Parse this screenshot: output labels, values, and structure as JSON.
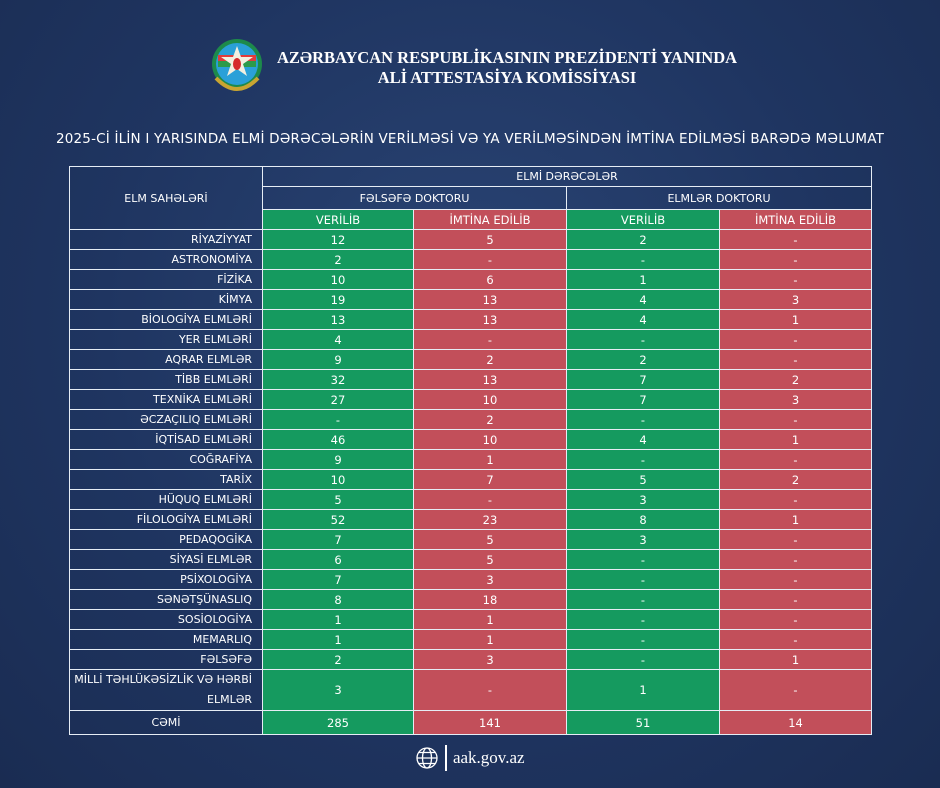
{
  "header": {
    "org_line1": "AZƏRBAYCAN RESPUBLİKASININ PREZİDENTİ YANINDA",
    "org_line2": "ALİ ATTESTASİYA KOMİSSİYASI"
  },
  "subtitle": "2025-Cİ İLİN I YARISINDA ELMİ DƏRƏCƏLƏRİN VERİLMƏSİ VƏ YA VERİLMƏSİNDƏN İMTİNA EDİLMƏSİ BARƏDƏ MƏLUMAT",
  "colors": {
    "background": "#1f3561",
    "green": "#159a5f",
    "red": "#c24f5a"
  },
  "table": {
    "col_header": "ELM SAHƏLƏRİ",
    "group_header": "ELMİ DƏRƏCƏLƏR",
    "degrees": [
      "FƏLSƏFƏ DOKTORU",
      "ELMLƏR DOKTORU"
    ],
    "sub": [
      "VERİLİB",
      "İMTİNA EDİLİB",
      "VERİLİB",
      "İMTİNA EDİLİB"
    ],
    "rows": [
      {
        "name": "RİYAZİYYAT",
        "v": [
          "12",
          "5",
          "2",
          "-"
        ]
      },
      {
        "name": "ASTRONOMİYA",
        "v": [
          "2",
          "-",
          "-",
          "-"
        ]
      },
      {
        "name": "FİZİKA",
        "v": [
          "10",
          "6",
          "1",
          "-"
        ]
      },
      {
        "name": "KİMYA",
        "v": [
          "19",
          "13",
          "4",
          "3"
        ]
      },
      {
        "name": "BİOLOGİYA ELMLƏRİ",
        "v": [
          "13",
          "13",
          "4",
          "1"
        ]
      },
      {
        "name": "YER ELMLƏRİ",
        "v": [
          "4",
          "-",
          "-",
          "-"
        ]
      },
      {
        "name": "AQRAR ELMLƏR",
        "v": [
          "9",
          "2",
          "2",
          "-"
        ]
      },
      {
        "name": "TİBB ELMLƏRİ",
        "v": [
          "32",
          "13",
          "7",
          "2"
        ]
      },
      {
        "name": "TEXNİKA ELMLƏRİ",
        "v": [
          "27",
          "10",
          "7",
          "3"
        ]
      },
      {
        "name": "ƏCZAÇILIQ ELMLƏRİ",
        "v": [
          "-",
          "2",
          "-",
          "-"
        ]
      },
      {
        "name": "İQTİSAD ELMLƏRİ",
        "v": [
          "46",
          "10",
          "4",
          "1"
        ]
      },
      {
        "name": "COĞRAFİYA",
        "v": [
          "9",
          "1",
          "-",
          "-"
        ]
      },
      {
        "name": "TARİX",
        "v": [
          "10",
          "7",
          "5",
          "2"
        ]
      },
      {
        "name": "HÜQUQ ELMLƏRİ",
        "v": [
          "5",
          "-",
          "3",
          "-"
        ]
      },
      {
        "name": "FİLOLOGİYA ELMLƏRİ",
        "v": [
          "52",
          "23",
          "8",
          "1"
        ]
      },
      {
        "name": "PEDAQOGİKA",
        "v": [
          "7",
          "5",
          "3",
          "-"
        ]
      },
      {
        "name": "SİYASİ ELMLƏR",
        "v": [
          "6",
          "5",
          "-",
          "-"
        ]
      },
      {
        "name": "PSİXOLOGİYA",
        "v": [
          "7",
          "3",
          "-",
          "-"
        ]
      },
      {
        "name": "SƏNƏTŞÜNASLIQ",
        "v": [
          "8",
          "18",
          "-",
          "-"
        ]
      },
      {
        "name": "SOSİOLOGİYA",
        "v": [
          "1",
          "1",
          "-",
          "-"
        ]
      },
      {
        "name": "MEMARLIQ",
        "v": [
          "1",
          "1",
          "-",
          "-"
        ]
      },
      {
        "name": "FƏLSƏFƏ",
        "v": [
          "2",
          "3",
          "-",
          "1"
        ]
      },
      {
        "name": "MİLLİ TƏHLÜKƏSİZLİK VƏ HƏRBİ ELMLƏR",
        "v": [
          "3",
          "-",
          "1",
          "-"
        ]
      }
    ],
    "total": {
      "name": "CƏMİ",
      "v": [
        "285",
        "141",
        "51",
        "14"
      ]
    }
  },
  "footer": {
    "url": "aak.gov.az",
    "icon": "globe-icon"
  }
}
